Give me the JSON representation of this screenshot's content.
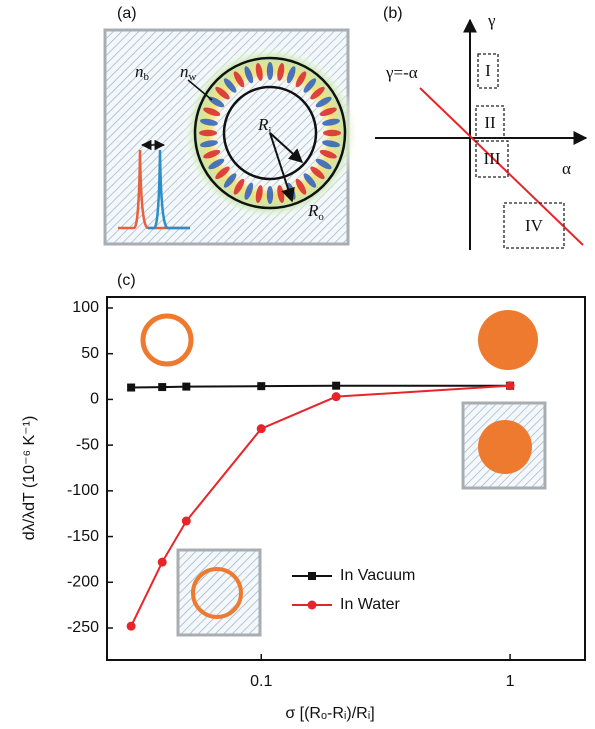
{
  "panels": {
    "a": {
      "label": "(a)",
      "n_b": "n",
      "n_b_sub": "b",
      "n_w": "n",
      "n_w_sub": "w",
      "R_i": "R",
      "R_i_sub": "i",
      "R_o": "R",
      "R_o_sub": "o"
    },
    "b": {
      "label": "(b)",
      "y_axis": "γ",
      "x_axis": "α",
      "line_label": "γ=-α",
      "regions": [
        "I",
        "II",
        "III",
        "IV"
      ]
    }
  },
  "chart_data": {
    "type": "line",
    "panel_label": "(c)",
    "x_label": "σ [(Rₒ-Rᵢ)/Rᵢ]",
    "y_label": "dλ/λdT (10⁻⁶ K⁻¹)",
    "x": [
      0.03,
      0.04,
      0.05,
      0.1,
      0.2,
      1
    ],
    "series": [
      {
        "name": "In Vacuum",
        "color": "#111111",
        "marker": "square",
        "values": [
          13,
          13.5,
          14,
          14.5,
          15,
          15
        ]
      },
      {
        "name": "In Water",
        "color": "#e8242b",
        "marker": "circle",
        "values": [
          -248,
          -178,
          -133,
          -32,
          3,
          15
        ]
      }
    ],
    "xlim": [
      0.024,
      2
    ],
    "xticks": [
      0.1,
      1
    ],
    "log_x": true,
    "ylim": [
      -285,
      112
    ],
    "yticks": [
      -250,
      -200,
      -150,
      -100,
      -50,
      0,
      50,
      100
    ]
  }
}
